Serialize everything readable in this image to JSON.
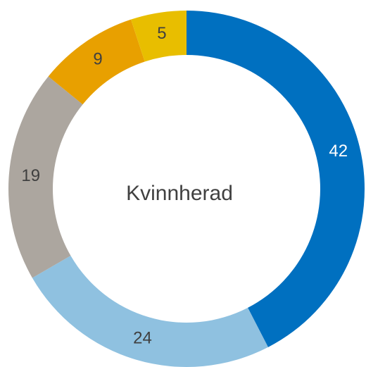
{
  "chart_data": {
    "type": "donut",
    "center_label": "Kvinnherad",
    "values": [
      42,
      24,
      19,
      9,
      5
    ],
    "colors": [
      "#0070c0",
      "#8fc1e0",
      "#aca69f",
      "#e8a000",
      "#e8be00"
    ]
  }
}
